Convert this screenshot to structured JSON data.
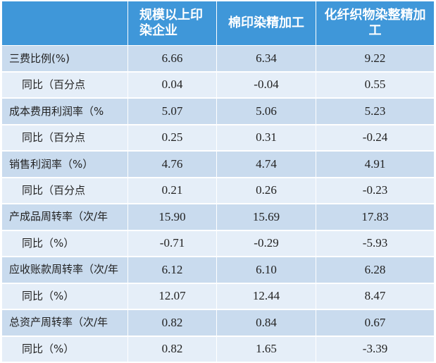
{
  "header": {
    "col1": "",
    "col2": "规模以上印染企业",
    "col3": "棉印染精加工",
    "col4": "化纤织物染整精加工"
  },
  "rows": [
    {
      "label": "三费比例(%)",
      "v1": "6.66",
      "v2": "6.34",
      "v3": "9.22"
    },
    {
      "label": "同比（百分点",
      "v1": "0.04",
      "v2": "-0.04",
      "v3": "0.55"
    },
    {
      "label": "成本费用利润率（%",
      "v1": "5.07",
      "v2": "5.06",
      "v3": "5.23"
    },
    {
      "label": "同比（百分点",
      "v1": "0.25",
      "v2": "0.31",
      "v3": "-0.24"
    },
    {
      "label": "销售利润率（%）",
      "v1": "4.76",
      "v2": "4.74",
      "v3": "4.91"
    },
    {
      "label": "同比（百分点",
      "v1": "0.21",
      "v2": "0.26",
      "v3": "-0.23"
    },
    {
      "label": "产成品周转率（次/年",
      "v1": "15.90",
      "v2": "15.69",
      "v3": "17.83"
    },
    {
      "label": "同比（%）",
      "v1": "-0.71",
      "v2": "-0.29",
      "v3": "-5.93"
    },
    {
      "label": "应收账款周转率（次/年",
      "v1": "6.12",
      "v2": "6.10",
      "v3": "6.28"
    },
    {
      "label": "同比（%）",
      "v1": "12.07",
      "v2": "12.44",
      "v3": "8.47"
    },
    {
      "label": "总资产周转率（次/年",
      "v1": "0.82",
      "v2": "0.84",
      "v3": "0.67"
    },
    {
      "label": "同比（%）",
      "v1": "0.82",
      "v2": "1.65",
      "v3": "-3.39"
    }
  ],
  "colors": {
    "header_bg": "#3f97d9",
    "row_dark": "#c9dbee",
    "row_light": "#e5eef8"
  }
}
